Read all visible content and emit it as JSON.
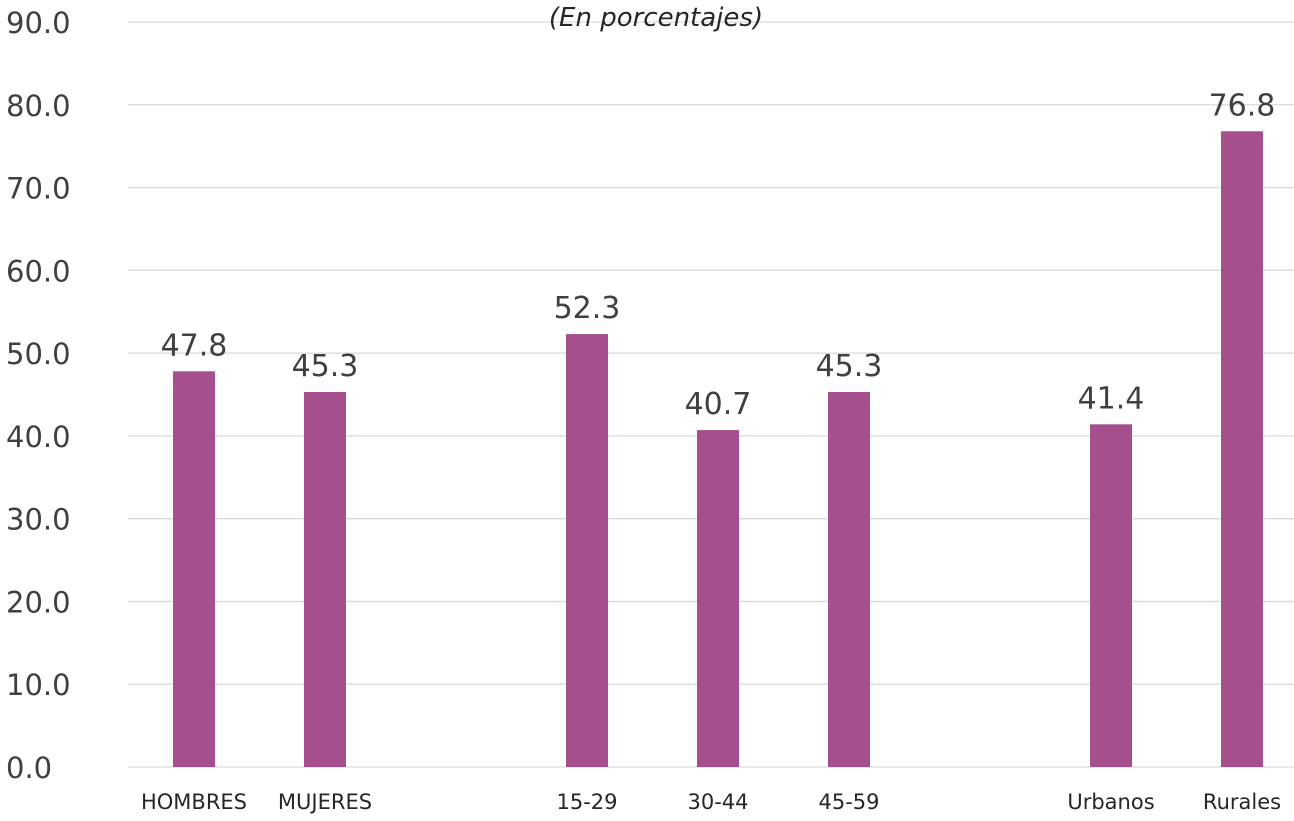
{
  "chart_data": {
    "type": "bar",
    "subtitle": "(En porcentajes)",
    "categories": [
      "HOMBRES",
      "MUJERES",
      "15-29",
      "30-44",
      "45-59",
      "Urbanos",
      "Rurales"
    ],
    "values": [
      47.8,
      45.3,
      52.3,
      40.7,
      45.3,
      41.4,
      76.8
    ],
    "value_labels": [
      "47.8",
      "45.3",
      "52.3",
      "40.7",
      "45.3",
      "41.4",
      "76.8"
    ],
    "ylim": [
      0,
      90
    ],
    "yticks": [
      "0.0",
      "10.0",
      "20.0",
      "30.0",
      "40.0",
      "50.0",
      "60.0",
      "70.0",
      "80.0",
      "90.0"
    ],
    "grid": true,
    "legend": "none",
    "bar_color": "#a54f8c"
  }
}
